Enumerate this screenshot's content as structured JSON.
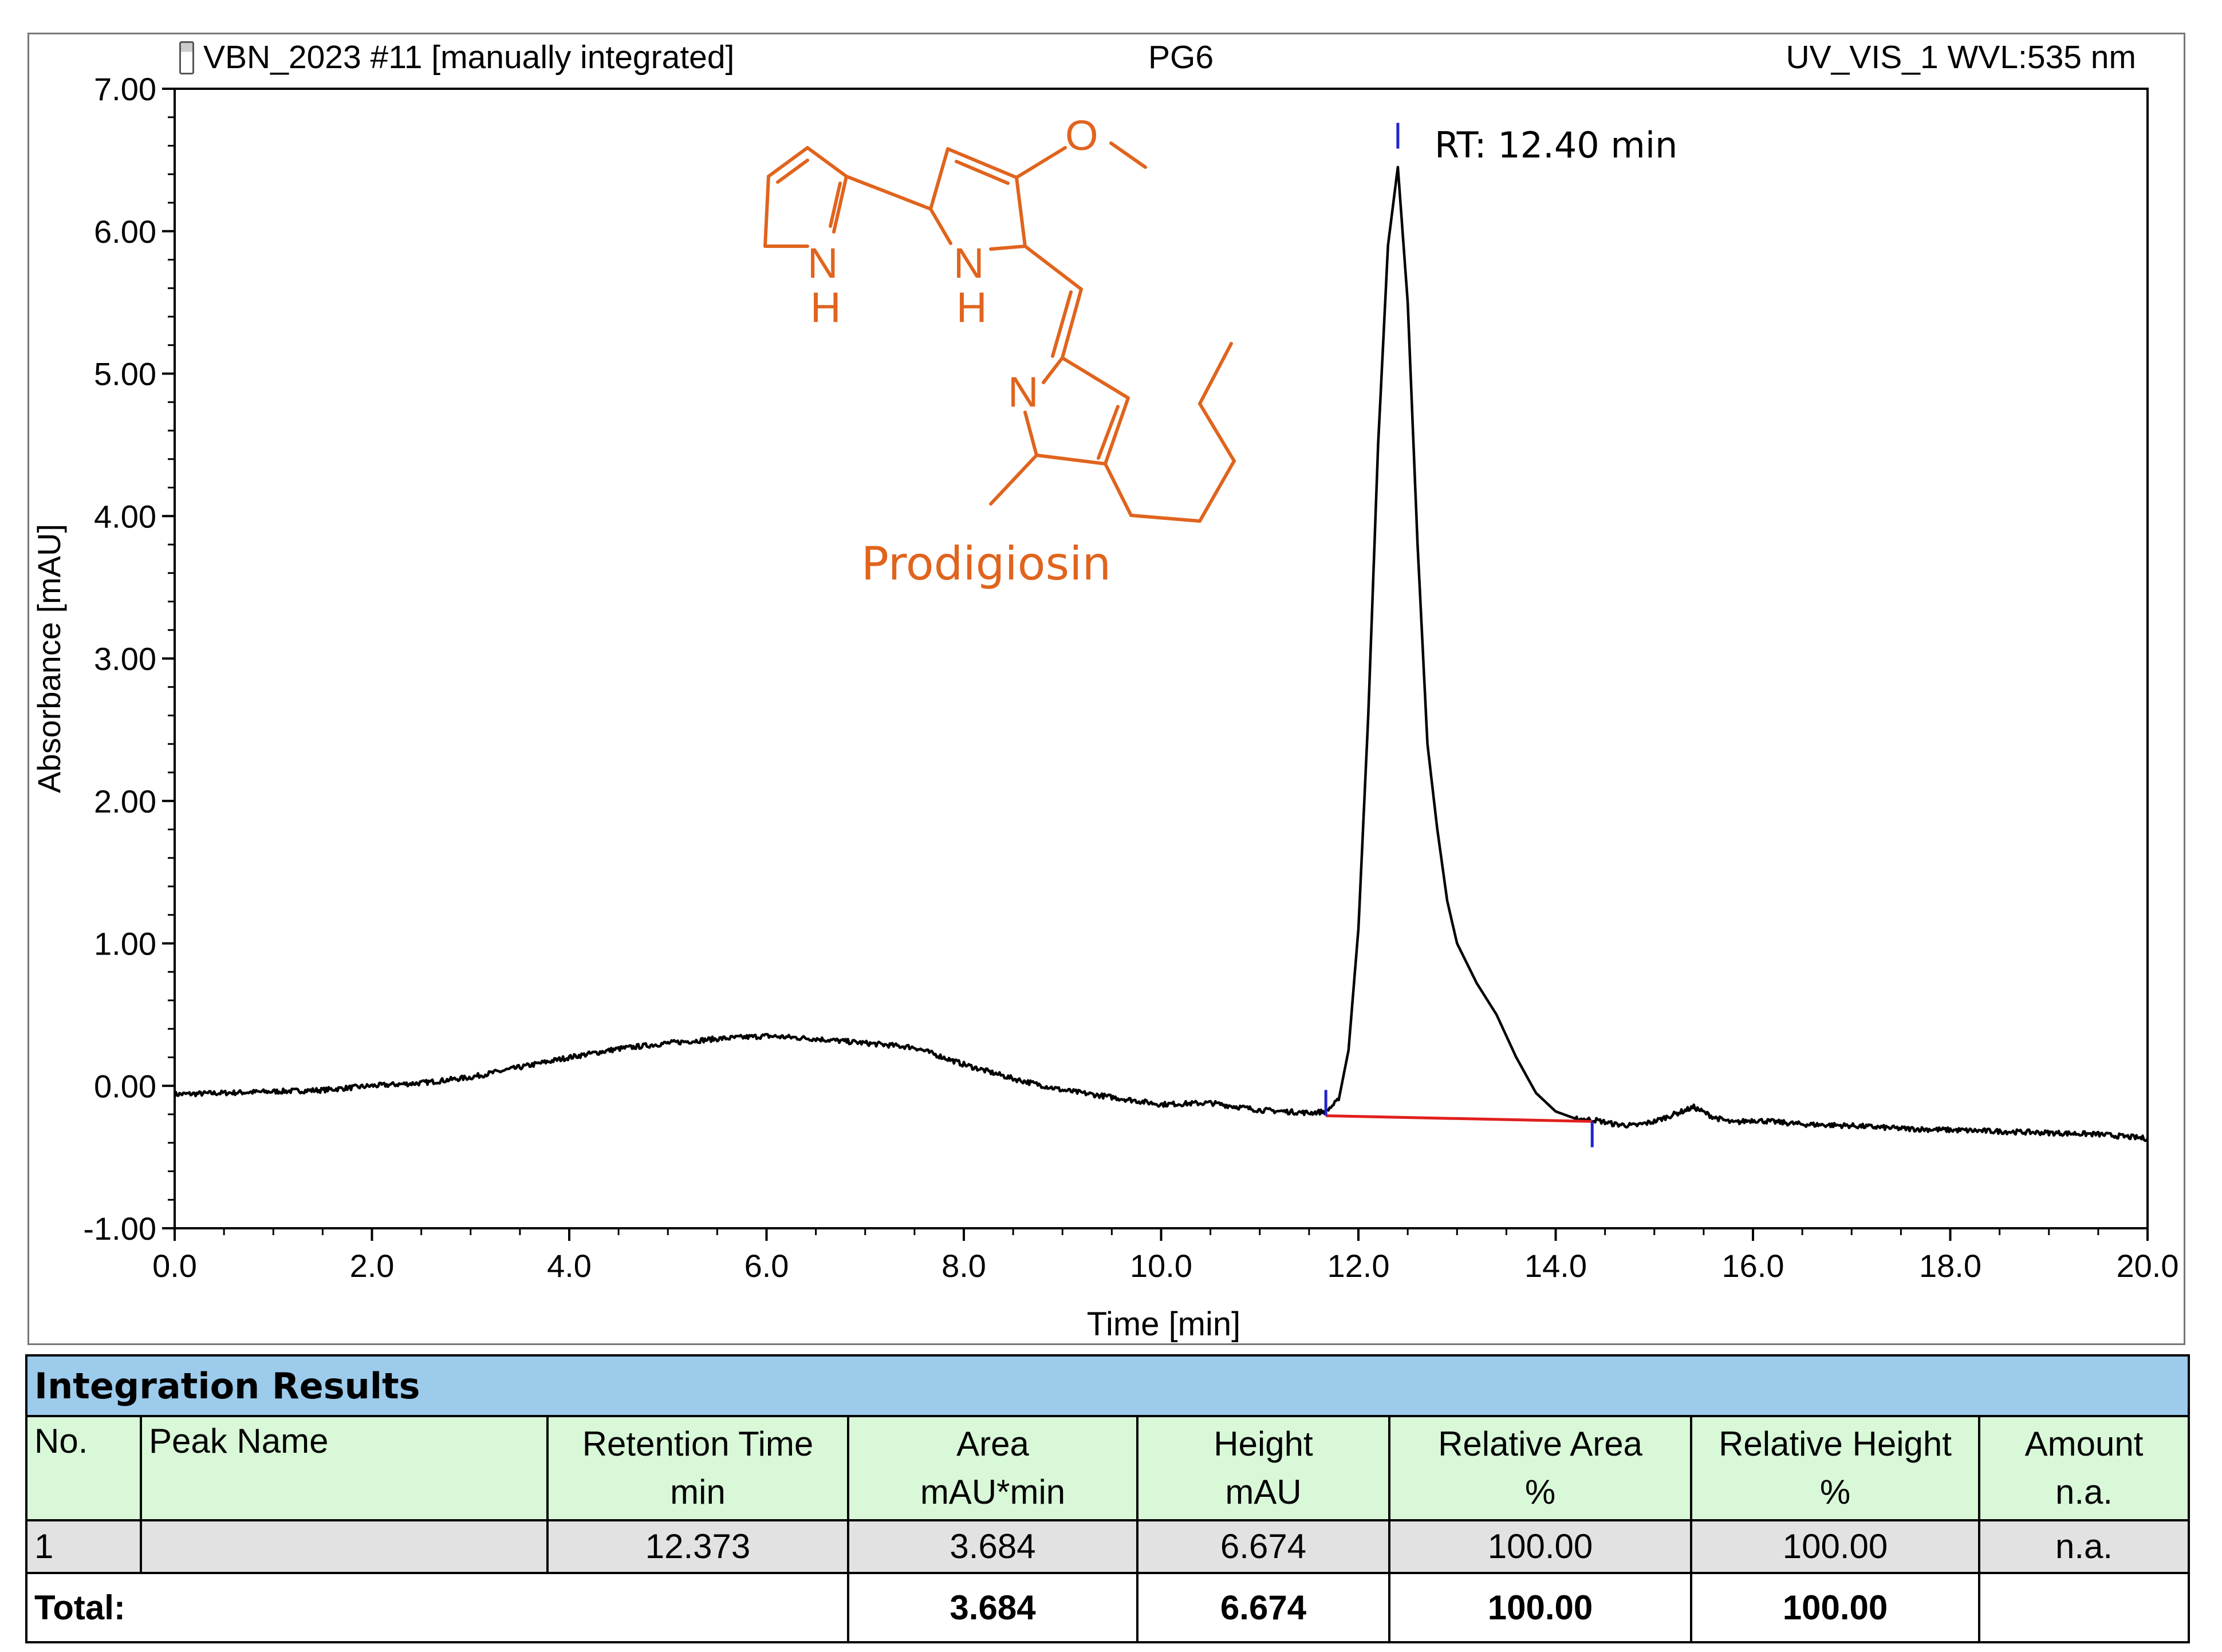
{
  "header": {
    "sample": "VBN_2023 #11 [manually integrated]",
    "sample_icon": "vial-icon",
    "sample_name": "PG6",
    "detector": "UV_VIS_1 WVL:535 nm"
  },
  "annotation": {
    "peak_label": "RT: 12.40 min",
    "compound_name": "Prodigiosin",
    "atoms": [
      "O",
      "N",
      "H",
      "N",
      "H",
      "N"
    ]
  },
  "colors": {
    "trace": "#000000",
    "baseline": "#e0201e",
    "markers": "#2222cc",
    "molecule": "#e0641e",
    "table_title": "#9ccbec",
    "table_header": "#d8f8d8",
    "table_row": "#e2e2e2"
  },
  "chart_data": {
    "type": "line",
    "xlabel": "Time [min]",
    "ylabel": "Absorbance [mAU]",
    "xlim": [
      0,
      20
    ],
    "ylim": [
      -1,
      7
    ],
    "x_ticks": [
      "0.0",
      "2.0",
      "4.0",
      "6.0",
      "8.0",
      "10.0",
      "12.0",
      "14.0",
      "16.0",
      "18.0",
      "20.0"
    ],
    "y_ticks": [
      "-1.00",
      "0.00",
      "1.00",
      "2.00",
      "3.00",
      "4.00",
      "5.00",
      "6.00",
      "7.00"
    ],
    "series": [
      {
        "x": [
          0,
          0.5,
          1,
          1.5,
          2,
          2.5,
          3,
          3.5,
          4,
          4.5,
          5,
          5.5,
          6,
          6.5,
          7,
          7.5,
          8,
          8.5,
          9,
          9.5,
          10,
          10.5,
          11,
          11.5,
          11.67,
          11.8,
          11.9,
          12.0,
          12.1,
          12.2,
          12.3,
          12.4,
          12.5,
          12.6,
          12.7,
          12.8,
          12.9,
          13.0,
          13.2,
          13.4,
          13.6,
          13.8,
          14.0,
          14.2,
          14.4,
          14.6,
          14.8,
          15.0,
          15.2,
          15.4,
          15.6,
          15.8,
          16.0,
          16.5,
          17,
          17.5,
          18,
          18.5,
          19,
          19.5,
          20
        ],
        "y": [
          -0.06,
          -0.05,
          -0.04,
          -0.03,
          0.0,
          0.02,
          0.06,
          0.13,
          0.2,
          0.26,
          0.3,
          0.33,
          0.35,
          0.33,
          0.3,
          0.27,
          0.15,
          0.05,
          -0.03,
          -0.08,
          -0.13,
          -0.12,
          -0.17,
          -0.19,
          -0.18,
          -0.1,
          0.25,
          1.1,
          2.6,
          4.5,
          5.9,
          6.45,
          5.5,
          3.8,
          2.4,
          1.8,
          1.3,
          1.0,
          0.72,
          0.5,
          0.2,
          -0.05,
          -0.18,
          -0.23,
          -0.24,
          -0.27,
          -0.28,
          -0.25,
          -0.2,
          -0.15,
          -0.22,
          -0.26,
          -0.24,
          -0.27,
          -0.28,
          -0.3,
          -0.31,
          -0.32,
          -0.33,
          -0.34,
          -0.37
        ]
      }
    ],
    "integration_baseline": {
      "x": [
        11.67,
        14.37
      ],
      "y": [
        -0.21,
        -0.25
      ]
    },
    "peak_markers_x": [
      11.67,
      12.4,
      14.37
    ],
    "grid": false
  },
  "table": {
    "title": "Integration Results",
    "headers": [
      {
        "top": "No.",
        "bottom": ""
      },
      {
        "top": "Peak Name",
        "bottom": ""
      },
      {
        "top": "Retention Time",
        "bottom": "min"
      },
      {
        "top": "Area",
        "bottom": "mAU*min"
      },
      {
        "top": "Height",
        "bottom": "mAU"
      },
      {
        "top": "Relative Area",
        "bottom": "%"
      },
      {
        "top": "Relative Height",
        "bottom": "%"
      },
      {
        "top": "Amount",
        "bottom": "n.a."
      }
    ],
    "rows": [
      [
        "1",
        "",
        "12.373",
        "3.684",
        "6.674",
        "100.00",
        "100.00",
        "n.a."
      ]
    ],
    "total": [
      "Total:",
      "",
      "",
      "3.684",
      "6.674",
      "100.00",
      "100.00",
      ""
    ]
  }
}
